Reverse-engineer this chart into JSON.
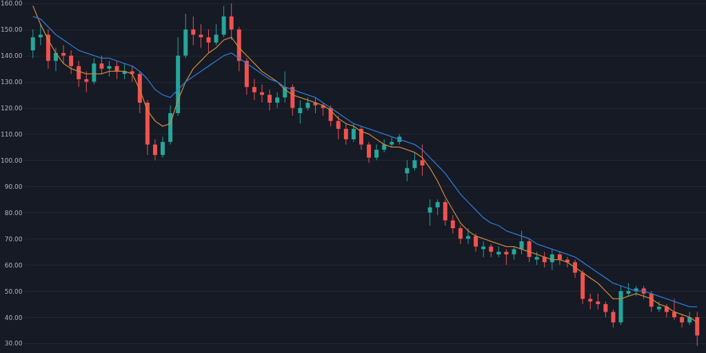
{
  "chart_data": {
    "type": "candlestick",
    "categories": [
      null,
      null,
      null,
      null,
      null,
      null,
      null,
      null,
      null,
      null,
      null,
      null,
      null,
      null,
      null,
      null,
      null,
      null,
      null,
      null,
      null,
      null,
      null,
      null,
      null,
      null,
      null,
      null,
      null,
      null,
      null,
      null,
      null,
      null,
      null,
      null,
      null,
      null,
      null,
      null,
      null,
      null,
      null,
      null,
      null,
      null,
      null,
      null,
      null,
      null,
      null,
      null,
      null,
      null,
      null,
      null,
      null,
      null,
      null,
      null,
      null,
      null,
      null,
      null,
      null,
      null,
      null,
      null,
      null,
      null,
      null,
      null,
      null,
      null,
      null,
      null,
      null,
      null,
      null,
      null,
      null,
      null,
      null,
      null,
      null,
      null,
      null,
      null
    ],
    "ohlc": [
      [
        142,
        150,
        139,
        147
      ],
      [
        147,
        152,
        144,
        148
      ],
      [
        148,
        150,
        135,
        138
      ],
      [
        138,
        143,
        134,
        141
      ],
      [
        141,
        144,
        137,
        140
      ],
      [
        140,
        142,
        133,
        136
      ],
      [
        136,
        138,
        128,
        131
      ],
      [
        131,
        134,
        126,
        130
      ],
      [
        130,
        139,
        129,
        137
      ],
      [
        137,
        140,
        133,
        135
      ],
      [
        135,
        138,
        132,
        136
      ],
      [
        136,
        138,
        131,
        134
      ],
      [
        133,
        137,
        131,
        134
      ],
      [
        134,
        136,
        130,
        133
      ],
      [
        133,
        134,
        118,
        122
      ],
      [
        122,
        123,
        102,
        106
      ],
      [
        106,
        108,
        100,
        102
      ],
      [
        102,
        109,
        101,
        107
      ],
      [
        107,
        121,
        106,
        118
      ],
      [
        118,
        147,
        117,
        140
      ],
      [
        140,
        156,
        139,
        150
      ],
      [
        150,
        155,
        144,
        148
      ],
      [
        148,
        152,
        143,
        147
      ],
      [
        147,
        150,
        141,
        145
      ],
      [
        145,
        152,
        144,
        148
      ],
      [
        148,
        159,
        147,
        155
      ],
      [
        155,
        160,
        146,
        150
      ],
      [
        150,
        151,
        134,
        138
      ],
      [
        138,
        139,
        125,
        128
      ],
      [
        128,
        131,
        123,
        126
      ],
      [
        126,
        129,
        122,
        125
      ],
      [
        125,
        127,
        119,
        122
      ],
      [
        122,
        126,
        120,
        124
      ],
      [
        124,
        134,
        122,
        128
      ],
      [
        128,
        129,
        117,
        120
      ],
      [
        118,
        123,
        114,
        120
      ],
      [
        120,
        124,
        119,
        122
      ],
      [
        122,
        124,
        118,
        121
      ],
      [
        121,
        122,
        117,
        120
      ],
      [
        120,
        121,
        113,
        115
      ],
      [
        115,
        117,
        108,
        112
      ],
      [
        112,
        114,
        106,
        108
      ],
      [
        108,
        114,
        107,
        112
      ],
      [
        112,
        113,
        104,
        106
      ],
      [
        106,
        107,
        99,
        101
      ],
      [
        101,
        106,
        100,
        104
      ],
      [
        104,
        108,
        103,
        106
      ],
      [
        106,
        109,
        105,
        107
      ],
      [
        107,
        110,
        106,
        109
      ],
      [
        95,
        100,
        92,
        97
      ],
      [
        97,
        103,
        96,
        100
      ],
      [
        100,
        106,
        94,
        98
      ],
      [
        80,
        85,
        75,
        82
      ],
      [
        82,
        85,
        79,
        84
      ],
      [
        84,
        85,
        75,
        77
      ],
      [
        77,
        79,
        72,
        74
      ],
      [
        74,
        75,
        68,
        70
      ],
      [
        70,
        74,
        68,
        71
      ],
      [
        71,
        72,
        65,
        67
      ],
      [
        66,
        69,
        63,
        67
      ],
      [
        67,
        68,
        63,
        65
      ],
      [
        64,
        67,
        63,
        65
      ],
      [
        65,
        66,
        60,
        64
      ],
      [
        64,
        67,
        62,
        66
      ],
      [
        66,
        73,
        64,
        69
      ],
      [
        69,
        70,
        61,
        63
      ],
      [
        62,
        65,
        60,
        63
      ],
      [
        63,
        65,
        59,
        61
      ],
      [
        61,
        66,
        58,
        64
      ],
      [
        64,
        65,
        60,
        62
      ],
      [
        62,
        63,
        59,
        61
      ],
      [
        61,
        62,
        55,
        57
      ],
      [
        57,
        58,
        45,
        47
      ],
      [
        47,
        49,
        43,
        46
      ],
      [
        46,
        49,
        43,
        45
      ],
      [
        45,
        46,
        40,
        42
      ],
      [
        42,
        43,
        36,
        38
      ],
      [
        38,
        52,
        37,
        50
      ],
      [
        49,
        53,
        48,
        50
      ],
      [
        50,
        52,
        48,
        51
      ],
      [
        51,
        52,
        47,
        49
      ],
      [
        49,
        50,
        42,
        44
      ],
      [
        43,
        46,
        42,
        44
      ],
      [
        44,
        45,
        40,
        42
      ],
      [
        42,
        47,
        39,
        40
      ],
      [
        40,
        41,
        36,
        38
      ],
      [
        38,
        42,
        37,
        40
      ],
      [
        40,
        42,
        29,
        33
      ]
    ],
    "colors": [
      "#26a69a",
      "#26a69a",
      "#ef5350",
      "#26a69a",
      "#ef5350",
      "#ef5350",
      "#ef5350",
      "#ef5350",
      "#26a69a",
      "#ef5350",
      "#26a69a",
      "#ef5350",
      "#26a69a",
      "#ef5350",
      "#ef5350",
      "#ef5350",
      "#ef5350",
      "#26a69a",
      "#26a69a",
      "#26a69a",
      "#26a69a",
      "#ef5350",
      "#ef5350",
      "#ef5350",
      "#26a69a",
      "#26a69a",
      "#ef5350",
      "#ef5350",
      "#ef5350",
      "#ef5350",
      "#ef5350",
      "#ef5350",
      "#26a69a",
      "#26a69a",
      "#ef5350",
      "#26a69a",
      "#26a69a",
      "#ef5350",
      "#ef5350",
      "#ef5350",
      "#ef5350",
      "#ef5350",
      "#26a69a",
      "#ef5350",
      "#ef5350",
      "#26a69a",
      "#26a69a",
      "#26a69a",
      "#26a69a",
      "#26a69a",
      "#26a69a",
      "#ef5350",
      "#26a69a",
      "#26a69a",
      "#ef5350",
      "#ef5350",
      "#ef5350",
      "#26a69a",
      "#ef5350",
      "#26a69a",
      "#ef5350",
      "#26a69a",
      "#ef5350",
      "#26a69a",
      "#26a69a",
      "#ef5350",
      "#26a69a",
      "#ef5350",
      "#26a69a",
      "#ef5350",
      "#ef5350",
      "#ef5350",
      "#ef5350",
      "#ef5350",
      "#ef5350",
      "#ef5350",
      "#ef5350",
      "#26a69a",
      "#26a69a",
      "#26a69a",
      "#ef5350",
      "#ef5350",
      "#26a69a",
      "#ef5350",
      "#ef5350",
      "#ef5350",
      "#26a69a",
      "#ef5350"
    ],
    "series": [
      {
        "type": "line",
        "color": "#c8893a",
        "values": [
          159,
          152,
          146,
          141,
          137,
          135,
          134,
          133,
          133,
          133,
          134,
          134,
          134,
          133,
          127,
          119,
          115,
          113,
          114,
          123,
          130,
          135,
          138,
          141,
          143,
          146,
          147,
          143,
          140,
          137,
          134,
          132,
          130,
          127,
          125,
          124,
          123,
          122,
          121,
          119,
          116,
          114,
          113,
          111,
          110,
          108,
          106,
          105,
          105,
          104,
          103,
          101,
          97,
          92,
          86,
          81,
          76,
          73,
          71,
          70,
          69,
          68,
          67,
          67,
          66,
          65,
          64,
          63,
          62,
          62,
          61,
          59,
          57,
          55,
          53,
          50,
          47,
          47,
          48,
          49,
          48,
          47,
          45,
          44,
          42,
          41,
          40,
          38
        ]
      },
      {
        "type": "line",
        "color": "#2f7bd4",
        "values": [
          155,
          154,
          151,
          148,
          146,
          144,
          142,
          141,
          140,
          139,
          139,
          138,
          137,
          136,
          134,
          131,
          127,
          125,
          124,
          127,
          130,
          132,
          134,
          136,
          138,
          140,
          141,
          139,
          137,
          135,
          133,
          131,
          130,
          128,
          127,
          126,
          125,
          124,
          122,
          120,
          118,
          116,
          114,
          113,
          112,
          111,
          110,
          109,
          108,
          107,
          106,
          104,
          101,
          98,
          95,
          91,
          87,
          84,
          81,
          78,
          76,
          75,
          73,
          72,
          71,
          70,
          68,
          67,
          66,
          65,
          64,
          63,
          61,
          59,
          57,
          55,
          53,
          52,
          51,
          50,
          50,
          49,
          48,
          47,
          46,
          45,
          44,
          44
        ]
      }
    ],
    "ylim": [
      26.3,
      161
    ],
    "yticks": [
      {
        "value": 30,
        "label": "30.00"
      },
      {
        "value": 40,
        "label": "40.00"
      },
      {
        "value": 50,
        "label": "50.00"
      },
      {
        "value": 60,
        "label": "60.00"
      },
      {
        "value": 70,
        "label": "70.00"
      },
      {
        "value": 80,
        "label": "80.00"
      },
      {
        "value": 90,
        "label": "90.00"
      },
      {
        "value": 100,
        "label": "100.00"
      },
      {
        "value": 110,
        "label": "110.00"
      },
      {
        "value": 120,
        "label": "120.00"
      },
      {
        "value": 130,
        "label": "130.00"
      },
      {
        "value": 140,
        "label": "140.00"
      },
      {
        "value": 150,
        "label": "150.00"
      },
      {
        "value": 160,
        "label": "160.00"
      }
    ],
    "grid": "y",
    "tick_labels": "y"
  }
}
